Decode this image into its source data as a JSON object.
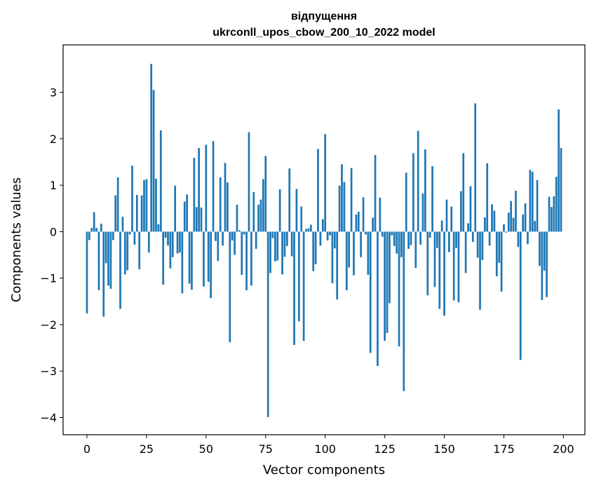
{
  "chart_data": {
    "type": "bar",
    "title": "відпущення",
    "subtitle": "ukrconll_upos_cbow_200_10_2022 model",
    "xlabel": "Vector components",
    "ylabel": "Components values",
    "xlim": [
      -10,
      209
    ],
    "ylim": [
      -4.37,
      4.02
    ],
    "xticks": [
      0,
      25,
      50,
      75,
      100,
      125,
      150,
      175,
      200
    ],
    "yticks": [
      -4,
      -3,
      -2,
      -1,
      0,
      1,
      2,
      3
    ],
    "bar_color": "#1f77b4",
    "x": [
      0,
      1,
      2,
      3,
      4,
      5,
      6,
      7,
      8,
      9,
      10,
      11,
      12,
      13,
      14,
      15,
      16,
      17,
      18,
      19,
      20,
      21,
      22,
      23,
      24,
      25,
      26,
      27,
      28,
      29,
      30,
      31,
      32,
      33,
      34,
      35,
      36,
      37,
      38,
      39,
      40,
      41,
      42,
      43,
      44,
      45,
      46,
      47,
      48,
      49,
      50,
      51,
      52,
      53,
      54,
      55,
      56,
      57,
      58,
      59,
      60,
      61,
      62,
      63,
      64,
      65,
      66,
      67,
      68,
      69,
      70,
      71,
      72,
      73,
      74,
      75,
      76,
      77,
      78,
      79,
      80,
      81,
      82,
      83,
      84,
      85,
      86,
      87,
      88,
      89,
      90,
      91,
      92,
      93,
      94,
      95,
      96,
      97,
      98,
      99,
      100,
      101,
      102,
      103,
      104,
      105,
      106,
      107,
      108,
      109,
      110,
      111,
      112,
      113,
      114,
      115,
      116,
      117,
      118,
      119,
      120,
      121,
      122,
      123,
      124,
      125,
      126,
      127,
      128,
      129,
      130,
      131,
      132,
      133,
      134,
      135,
      136,
      137,
      138,
      139,
      140,
      141,
      142,
      143,
      144,
      145,
      146,
      147,
      148,
      149,
      150,
      151,
      152,
      153,
      154,
      155,
      156,
      157,
      158,
      159,
      160,
      161,
      162,
      163,
      164,
      165,
      166,
      167,
      168,
      169,
      170,
      171,
      172,
      173,
      174,
      175,
      176,
      177,
      178,
      179,
      180,
      181,
      182,
      183,
      184,
      185,
      186,
      187,
      188,
      189,
      190,
      191,
      192,
      193,
      194,
      195,
      196,
      197,
      198,
      199
    ],
    "values": [
      -1.76,
      -0.18,
      0.08,
      0.42,
      0.08,
      -1.26,
      0.17,
      -1.83,
      -0.68,
      -1.16,
      -1.23,
      -0.18,
      0.78,
      1.17,
      -1.66,
      0.32,
      -0.92,
      -0.83,
      -0.06,
      1.42,
      -0.28,
      0.79,
      -0.81,
      0.78,
      1.11,
      1.13,
      -0.45,
      3.61,
      3.05,
      1.14,
      0.16,
      2.18,
      -1.14,
      -0.13,
      -0.3,
      -0.79,
      -0.55,
      0.99,
      -0.47,
      -0.45,
      -1.33,
      0.65,
      0.8,
      -1.12,
      -1.25,
      1.59,
      0.53,
      1.8,
      0.52,
      -1.18,
      1.87,
      -1.08,
      -1.43,
      1.95,
      -0.2,
      -0.63,
      1.17,
      -0.3,
      1.48,
      1.06,
      -2.38,
      -0.19,
      -0.5,
      0.58,
      0.03,
      -0.93,
      -0.06,
      -1.26,
      2.14,
      -1.16,
      0.85,
      -0.37,
      0.58,
      0.69,
      1.13,
      1.63,
      -3.99,
      -0.89,
      -0.14,
      -0.64,
      -0.62,
      0.91,
      -0.92,
      -0.54,
      -0.31,
      1.36,
      -0.53,
      -2.44,
      0.92,
      -1.93,
      0.54,
      -2.35,
      0.06,
      0.07,
      0.15,
      -0.85,
      -0.7,
      1.78,
      -0.3,
      0.27,
      2.1,
      -0.19,
      -0.08,
      -1.11,
      -0.36,
      -1.46,
      0.99,
      1.45,
      1.07,
      -1.26,
      -0.77,
      1.37,
      -0.94,
      0.37,
      0.43,
      -0.55,
      0.74,
      -0.06,
      -0.93,
      -2.61,
      0.3,
      1.65,
      -2.89,
      0.73,
      -0.11,
      -2.35,
      -2.18,
      -1.54,
      -0.08,
      -0.31,
      -0.47,
      -2.47,
      -0.55,
      -3.43,
      1.27,
      -0.37,
      -0.29,
      1.69,
      -0.78,
      2.17,
      -0.28,
      0.82,
      1.77,
      -1.37,
      -0.13,
      1.41,
      -1.19,
      -0.35,
      -1.66,
      0.24,
      -1.81,
      0.69,
      -0.44,
      0.54,
      -1.48,
      -0.35,
      -1.52,
      0.87,
      1.69,
      -0.89,
      0.18,
      0.98,
      -0.22,
      2.76,
      -0.56,
      -1.68,
      -0.61,
      0.31,
      1.47,
      -0.3,
      0.59,
      0.45,
      -0.96,
      -0.67,
      -1.29,
      0.16,
      -0.02,
      0.41,
      0.66,
      0.3,
      0.88,
      -0.33,
      -2.76,
      0.37,
      0.61,
      -0.27,
      1.33,
      1.29,
      0.23,
      1.11,
      -0.74,
      -1.47,
      -0.84,
      -1.41,
      0.75,
      0.53,
      0.76,
      1.18,
      2.63,
      1.8
    ]
  }
}
